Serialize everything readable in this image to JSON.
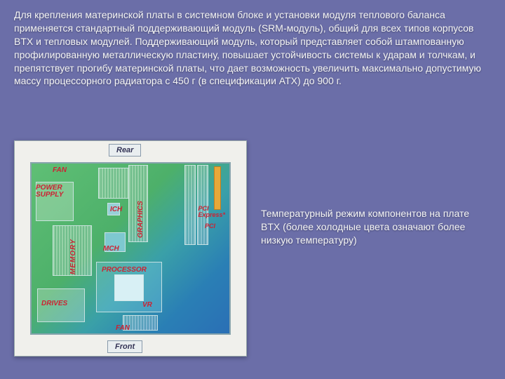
{
  "paragraph": "Для крепления материнской платы в системном блоке и установки модуля теплового баланса применяется стандартный поддерживающий модуль (SRM-модуль), общий для всех типов корпусов BTX и тепловых модулей. Поддерживающий модуль, который представляет собой штампованную профилированную металлическую пластину, повышает устойчивость системы к ударам и толчкам, и препятствует прогибу материнской платы, что дает возможность увеличить максимально допустимую массу процессорного радиатора с 450 г (в спецификации ATX) до 900 г.",
  "caption": "Температурный режим компонентов на плате BTX (более холодные цвета означают более низкую температуру)",
  "board": {
    "tags": {
      "rear": "Rear",
      "front": "Front"
    },
    "labels": {
      "fan_top": "FAN",
      "fan_bottom": "FAN",
      "power_supply": "POWER\nSUPPLY",
      "memory": "MEMORY",
      "drives": "DRIVES",
      "ich": "ICH",
      "graphics": "GRAPHICS",
      "mch": "MCH",
      "processor": "PROCESSOR",
      "vr": "VR",
      "pci_express": "PCI\nExpress*",
      "pci": "PCI"
    },
    "colors": {
      "slide_bg": "#6b6ea8",
      "board_gradient_from": "#5fbf75",
      "board_gradient_to": "#2a6fb5",
      "label_color": "#c23",
      "tag_bg": "#e9eef0",
      "accent_bar": "#e8a83a"
    }
  }
}
